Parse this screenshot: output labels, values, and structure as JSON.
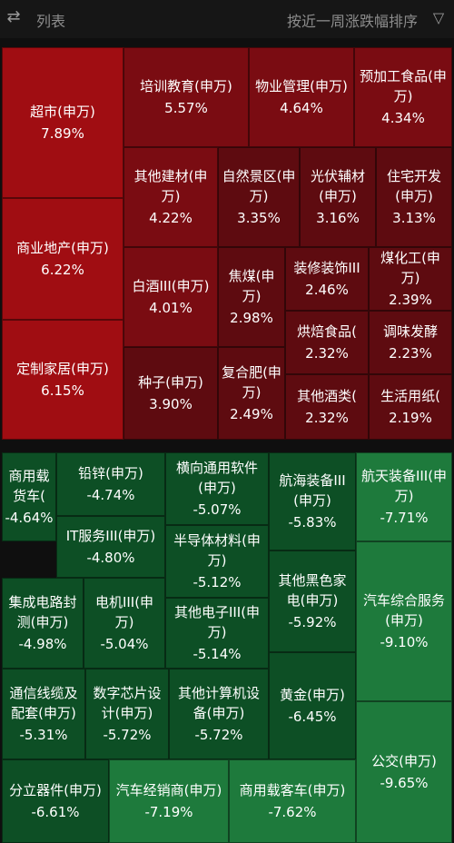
{
  "topbar": {
    "menu_icon": "swap-sort-icon",
    "list_label": "列表",
    "sort_label": "按近一周涨跌幅排序",
    "filter_icon": "filter-icon"
  },
  "colors": {
    "gain_strong": "#a00d12",
    "gain": "#7a0c12",
    "gain_mid": "#5e0b10",
    "loss": "#0d4f25",
    "loss_strong": "#1e7a3c",
    "background": "#0f0f0f"
  },
  "tiles": [
    {
      "name": "超市(申万)",
      "change": "7.89%"
    },
    {
      "name": "培训教育(申万)",
      "change": "5.57%"
    },
    {
      "name": "物业管理(申万)",
      "change": "4.64%"
    },
    {
      "name": "预加工食品(申万)",
      "change": "4.34%"
    },
    {
      "name": "其他建材(申万)",
      "change": "4.22%"
    },
    {
      "name": "自然景区(申万)",
      "change": "3.35%"
    },
    {
      "name": "光伏辅材(申万)",
      "change": "3.16%"
    },
    {
      "name": "住宅开发(申万)",
      "change": "3.13%"
    },
    {
      "name": "商业地产(申万)",
      "change": "6.22%"
    },
    {
      "name": "白酒III(申万)",
      "change": "4.01%"
    },
    {
      "name": "焦煤(申万)",
      "change": "2.98%"
    },
    {
      "name": "装修装饰III",
      "change": "2.46%"
    },
    {
      "name": "煤化工(申万)",
      "change": "2.39%"
    },
    {
      "name": "烘焙食品(",
      "change": "2.32%"
    },
    {
      "name": "调味发酵",
      "change": "2.23%"
    },
    {
      "name": "定制家居(申万)",
      "change": "6.15%"
    },
    {
      "name": "种子(申万)",
      "change": "3.90%"
    },
    {
      "name": "复合肥(申万)",
      "change": "2.49%"
    },
    {
      "name": "其他酒类(",
      "change": "2.32%"
    },
    {
      "name": "生活用纸(",
      "change": "2.19%"
    },
    {
      "name": "商用载货车(",
      "change": "-4.64%"
    },
    {
      "name": "铅锌(申万)",
      "change": "-4.74%"
    },
    {
      "name": "横向通用软件(申万)",
      "change": "-5.07%"
    },
    {
      "name": "航海装备III(申万)",
      "change": "-5.83%"
    },
    {
      "name": "航天装备III(申万)",
      "change": "-7.71%"
    },
    {
      "name": "IT服务III(申万)",
      "change": "-4.80%"
    },
    {
      "name": "半导体材料(申万)",
      "change": "-5.12%"
    },
    {
      "name": "其他黑色家电(申万)",
      "change": "-5.92%"
    },
    {
      "name": "集成电路封测(申万)",
      "change": "-4.98%"
    },
    {
      "name": "电机III(申万)",
      "change": "-5.04%"
    },
    {
      "name": "其他电子III(申万)",
      "change": "-5.14%"
    },
    {
      "name": "汽车综合服务(申万)",
      "change": "-9.10%"
    },
    {
      "name": "通信线缆及配套(申万)",
      "change": "-5.31%"
    },
    {
      "name": "数字芯片设计(申万)",
      "change": "-5.72%"
    },
    {
      "name": "其他计算机设备(申万)",
      "change": "-5.72%"
    },
    {
      "name": "黄金(申万)",
      "change": "-6.45%"
    },
    {
      "name": "公交(申万)",
      "change": "-9.65%"
    },
    {
      "name": "分立器件(申万)",
      "change": "-6.61%"
    },
    {
      "name": "汽车经销商(申万)",
      "change": "-7.19%"
    },
    {
      "name": "商用载客车(申万)",
      "change": "-7.62%"
    }
  ]
}
